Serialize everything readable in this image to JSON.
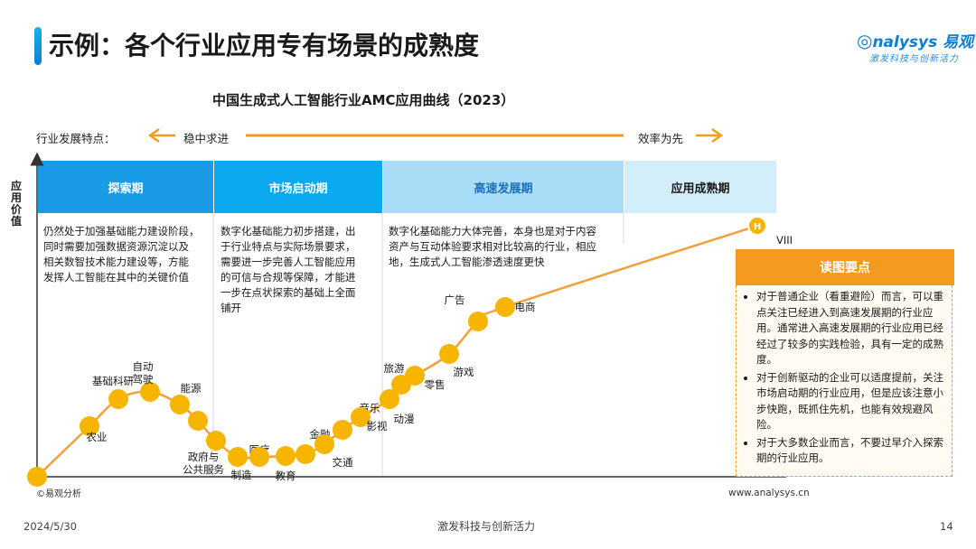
{
  "header": {
    "title": "示例：各个行业应用专有场景的成熟度",
    "logo": "nalysys 易观",
    "logo_tagline": "激发科技与创新活力"
  },
  "chart_data": {
    "type": "line",
    "title": "中国生成式人工智能行业AMC应用曲线（2023）",
    "ylabel": "应用价值",
    "feature_label": "行业发展特点：",
    "feature_left": "稳中求进",
    "feature_right": "效率为先",
    "phases": [
      {
        "name": "探索期",
        "color": "#1a9be6",
        "text_color": "#ffffff",
        "description": [
          "仍然处于加强基础能力建设阶段，",
          "同时需要加强数据资源沉淀以及",
          "相关数智技术能力建设等，方能",
          "发挥人工智能在其中的关键价值"
        ]
      },
      {
        "name": "市场启动期",
        "color": "#0aa9f0",
        "text_color": "#ffffff",
        "description": [
          "数字化基础能力初步搭建，出",
          "于行业特点与实际场景要求，",
          "需要进一步完善人工智能应用",
          "的可信与合规等保障，才能进",
          "一步在点状探索的基础上全面",
          "铺开"
        ]
      },
      {
        "name": "高速发展期",
        "color": "#a9dcf7",
        "text_color": "#1b6fb8",
        "description": [
          "数字化基础能力大体完善，本身也是对于内容",
          "资产与互动体验要求相对比较高的行业，相应",
          "地，生成式人工智能渗透速度更快"
        ]
      },
      {
        "name": "应用成熟期",
        "color": "#d3eefb",
        "text_color": "#1a1a1a",
        "description": []
      }
    ],
    "points": [
      {
        "label": "",
        "x": 0,
        "y": 0
      },
      {
        "label": "农业",
        "x": 58,
        "y": 56
      },
      {
        "label": "基础科研",
        "x": 90,
        "y": 86
      },
      {
        "label": "自动驾驶",
        "x": 125,
        "y": 94
      },
      {
        "label": "能源",
        "x": 158,
        "y": 80
      },
      {
        "label": "",
        "x": 178,
        "y": 62
      },
      {
        "label": "政府与公共服务",
        "x": 198,
        "y": 40
      },
      {
        "label": "医疗",
        "x": 222,
        "y": 22
      },
      {
        "label": "制造",
        "x": 246,
        "y": 22
      },
      {
        "label": "教育",
        "x": 275,
        "y": 23
      },
      {
        "label": "金融",
        "x": 297,
        "y": 25
      },
      {
        "label": "交通",
        "x": 318,
        "y": 36
      },
      {
        "label": "音乐",
        "x": 338,
        "y": 52
      },
      {
        "label": "影视",
        "x": 358,
        "y": 66
      },
      {
        "label": "动漫",
        "x": 390,
        "y": 86
      },
      {
        "label": "旅游",
        "x": 403,
        "y": 102
      },
      {
        "label": "零售",
        "x": 418,
        "y": 112
      },
      {
        "label": "游戏",
        "x": 456,
        "y": 136
      },
      {
        "label": "广告",
        "x": 488,
        "y": 172
      },
      {
        "label": "电商",
        "x": 518,
        "y": 188
      },
      {
        "label": "VIII",
        "x": 797,
        "y": 278
      }
    ],
    "end_marker": "H",
    "xlim": [
      0,
      830
    ],
    "ylim": [
      0,
      300
    ],
    "grid": false
  },
  "summary": {
    "title": "读图要点",
    "items": [
      "对于普通企业（看重避险）而言，可以重点关注已经进入到高速发展期的行业应用。通常进入高速发展期的行业应用已经经过了较多的实践检验，具有一定的成熟度。",
      "对于创新驱动的企业可以适度提前，关注市场启动期的行业应用，但是应该注意小步快跑，既抓住先机，也能有效规避风险。",
      "对于大多数企业而言，不要过早介入探索期的行业应用。"
    ]
  },
  "footer": {
    "source": "©易观分析",
    "website": "www.analysys.cn",
    "date": "2024/5/30",
    "slogan": "激发科技与创新活力",
    "page": "14"
  },
  "colors": {
    "accent_orange": "#f39a1f",
    "accent_blue": "#0d7fd0",
    "dot": "#f7b500",
    "curve": "#f2a03a"
  }
}
